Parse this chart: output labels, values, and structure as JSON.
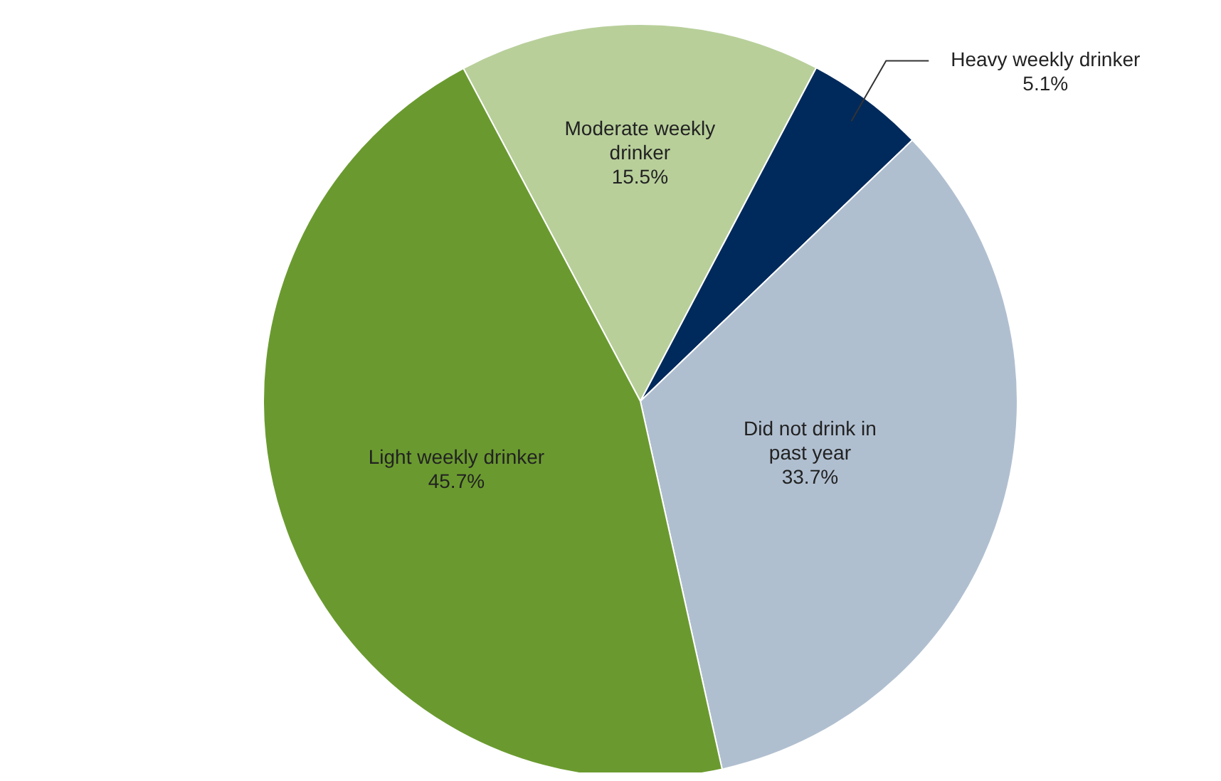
{
  "chart_data": {
    "type": "pie",
    "categories": [
      "Moderate weekly drinker",
      "Heavy weekly drinker",
      "Did not drink in past year",
      "Light weekly drinker"
    ],
    "values": [
      15.5,
      5.1,
      33.7,
      45.7
    ],
    "colors": [
      "#b8cf9a",
      "#002a5c",
      "#b0bfd0",
      "#6a9a2f"
    ],
    "value_labels": [
      "15.5%",
      "5.1%",
      "33.7%",
      "45.7%"
    ],
    "legend": false
  }
}
